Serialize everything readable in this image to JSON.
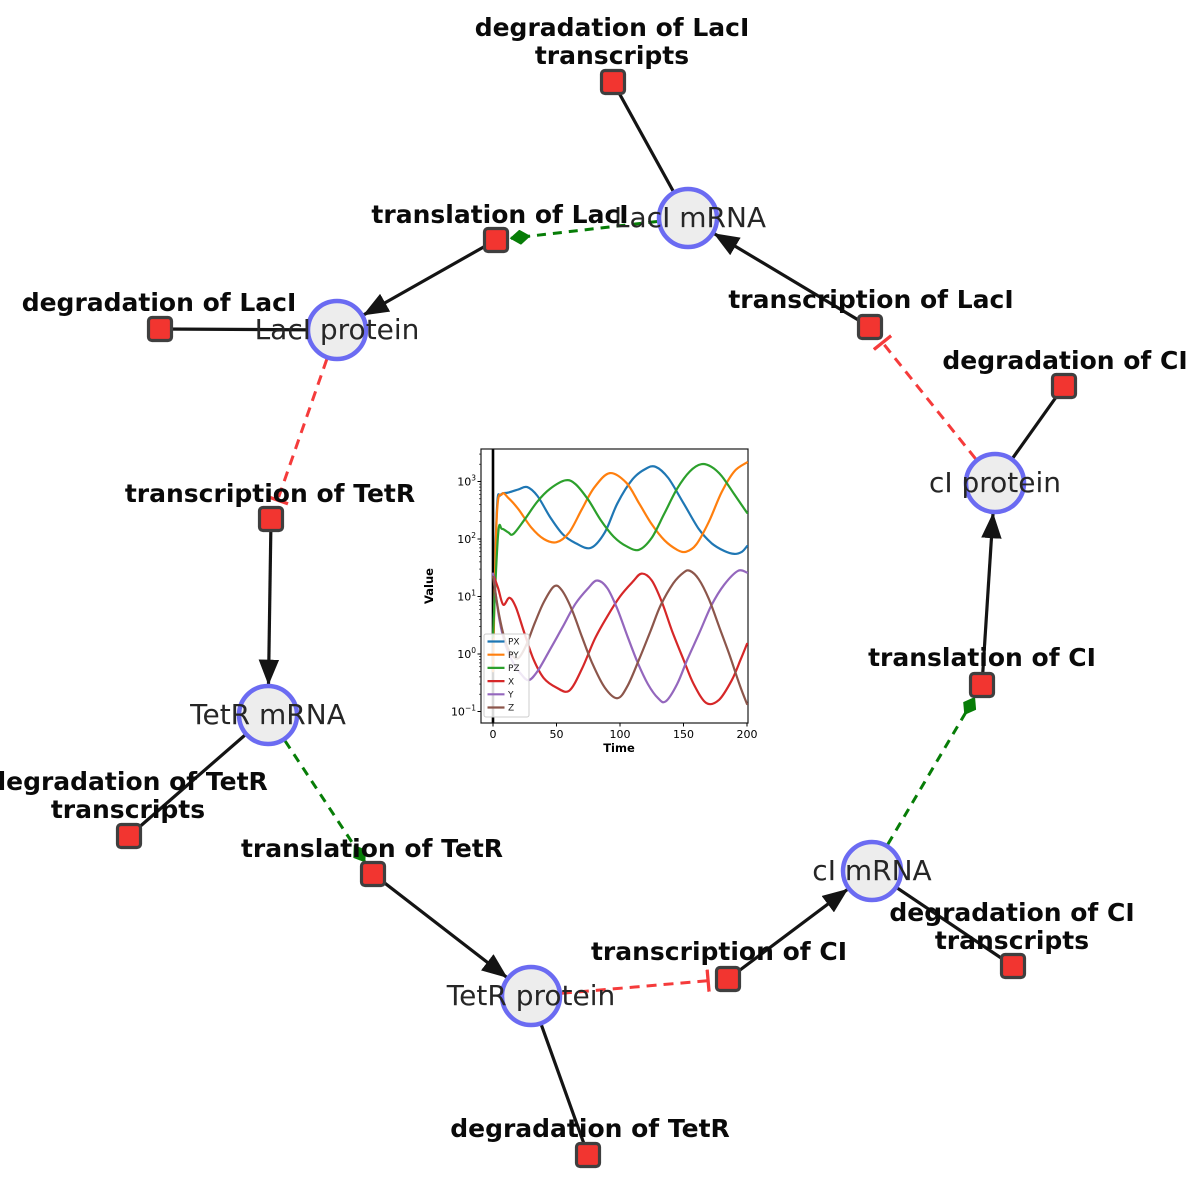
{
  "nodes": {
    "laci_mrna": {
      "label": "LacI mRNA"
    },
    "laci_protein": {
      "label": "LacI protein"
    },
    "tetr_mrna": {
      "label": "TetR mRNA"
    },
    "tetr_protein": {
      "label": "TetR protein"
    },
    "ci_mrna": {
      "label": "cI mRNA"
    },
    "ci_protein": {
      "label": "cI protein"
    }
  },
  "reactions": {
    "deg_laci_tr": {
      "lines": [
        "degradation of LacI",
        "transcripts"
      ]
    },
    "transl_laci": {
      "lines": [
        "translation of LacI"
      ]
    },
    "deg_laci": {
      "lines": [
        "degradation of LacI"
      ]
    },
    "transc_tetr": {
      "lines": [
        "transcription of TetR"
      ]
    },
    "deg_tetr_tr": {
      "lines": [
        "degradation of TetR",
        "transcripts"
      ]
    },
    "transl_tetr": {
      "lines": [
        "translation of TetR"
      ]
    },
    "deg_tetr": {
      "lines": [
        "degradation of TetR"
      ]
    },
    "transc_ci": {
      "lines": [
        "transcription of CI"
      ]
    },
    "deg_ci_tr": {
      "lines": [
        "degradation of CI",
        "transcripts"
      ]
    },
    "transl_ci": {
      "lines": [
        "translation of CI"
      ]
    },
    "deg_ci": {
      "lines": [
        "degradation of CI"
      ]
    },
    "transc_laci": {
      "lines": [
        "transcription of LacI"
      ]
    }
  },
  "colors": {
    "species_fill": "#ededed",
    "species_border": "#6b6bf2",
    "reaction_fill": "#f23530",
    "reaction_border": "#3f3f3f",
    "edge_solid": "#141414",
    "edge_activation": "#077d07",
    "edge_inhibition": "#f53b3b"
  },
  "chart_data": {
    "type": "line",
    "title": "",
    "xlabel": "Time",
    "ylabel": "Value",
    "yscale": "log",
    "xlim": [
      -10,
      201
    ],
    "ylim": [
      0.09,
      3500
    ],
    "x_ticks": [
      0,
      50,
      100,
      150,
      200
    ],
    "y_tick_exponents": [
      -1,
      0,
      1,
      2,
      3
    ],
    "vline_x": 0,
    "legend_position": "lower left",
    "grid": false,
    "series": [
      {
        "name": "PX",
        "color": "#1f77b4",
        "points": [
          [
            0,
            0.8
          ],
          [
            3,
            300
          ],
          [
            6,
            580
          ],
          [
            12,
            640
          ],
          [
            20,
            730
          ],
          [
            27,
            800
          ],
          [
            35,
            560
          ],
          [
            45,
            240
          ],
          [
            55,
            120
          ],
          [
            65,
            85
          ],
          [
            77,
            70
          ],
          [
            88,
            130
          ],
          [
            98,
            420
          ],
          [
            110,
            1100
          ],
          [
            120,
            1650
          ],
          [
            128,
            1800
          ],
          [
            138,
            1150
          ],
          [
            150,
            420
          ],
          [
            162,
            150
          ],
          [
            172,
            85
          ],
          [
            182,
            62
          ],
          [
            190,
            55
          ],
          [
            196,
            60
          ],
          [
            200,
            75
          ]
        ]
      },
      {
        "name": "PY",
        "color": "#ff7f0e",
        "points": [
          [
            0,
            0.5
          ],
          [
            3,
            250
          ],
          [
            7,
            600
          ],
          [
            12,
            520
          ],
          [
            20,
            330
          ],
          [
            30,
            160
          ],
          [
            40,
            100
          ],
          [
            50,
            88
          ],
          [
            60,
            130
          ],
          [
            70,
            330
          ],
          [
            80,
            800
          ],
          [
            92,
            1400
          ],
          [
            105,
            950
          ],
          [
            115,
            420
          ],
          [
            125,
            180
          ],
          [
            135,
            95
          ],
          [
            145,
            65
          ],
          [
            152,
            60
          ],
          [
            160,
            80
          ],
          [
            170,
            200
          ],
          [
            180,
            650
          ],
          [
            190,
            1500
          ],
          [
            200,
            2150
          ]
        ]
      },
      {
        "name": "PZ",
        "color": "#2ca02c",
        "points": [
          [
            0,
            2
          ],
          [
            4,
            120
          ],
          [
            7,
            150
          ],
          [
            12,
            130
          ],
          [
            16,
            122
          ],
          [
            25,
            220
          ],
          [
            35,
            450
          ],
          [
            45,
            750
          ],
          [
            57,
            1050
          ],
          [
            65,
            900
          ],
          [
            75,
            480
          ],
          [
            85,
            210
          ],
          [
            95,
            110
          ],
          [
            105,
            75
          ],
          [
            115,
            65
          ],
          [
            125,
            105
          ],
          [
            135,
            280
          ],
          [
            145,
            750
          ],
          [
            155,
            1500
          ],
          [
            164,
            2000
          ],
          [
            172,
            1800
          ],
          [
            180,
            1250
          ],
          [
            190,
            600
          ],
          [
            200,
            285
          ]
        ]
      },
      {
        "name": "X",
        "color": "#d62728",
        "points": [
          [
            0,
            25
          ],
          [
            4,
            14
          ],
          [
            8,
            7.2
          ],
          [
            13,
            9.5
          ],
          [
            18,
            6.5
          ],
          [
            25,
            2.2
          ],
          [
            32,
            0.8
          ],
          [
            40,
            0.38
          ],
          [
            50,
            0.26
          ],
          [
            60,
            0.23
          ],
          [
            70,
            0.55
          ],
          [
            80,
            1.8
          ],
          [
            90,
            4.5
          ],
          [
            100,
            10
          ],
          [
            110,
            18
          ],
          [
            117,
            25
          ],
          [
            125,
            19
          ],
          [
            133,
            8
          ],
          [
            141,
            2.5
          ],
          [
            150,
            0.8
          ],
          [
            158,
            0.3
          ],
          [
            168,
            0.14
          ],
          [
            178,
            0.16
          ],
          [
            188,
            0.35
          ],
          [
            195,
            0.8
          ],
          [
            200,
            1.5
          ]
        ]
      },
      {
        "name": "Y",
        "color": "#9467bd",
        "points": [
          [
            0,
            25
          ],
          [
            5,
            4
          ],
          [
            10,
            1.4
          ],
          [
            16,
            0.7
          ],
          [
            22,
            0.45
          ],
          [
            28,
            0.35
          ],
          [
            35,
            0.5
          ],
          [
            45,
            1.2
          ],
          [
            55,
            3
          ],
          [
            65,
            7.5
          ],
          [
            75,
            14
          ],
          [
            82,
            19
          ],
          [
            90,
            14
          ],
          [
            98,
            6
          ],
          [
            106,
            2
          ],
          [
            114,
            0.7
          ],
          [
            122,
            0.3
          ],
          [
            130,
            0.17
          ],
          [
            136,
            0.15
          ],
          [
            145,
            0.3
          ],
          [
            153,
            0.8
          ],
          [
            162,
            2.2
          ],
          [
            172,
            7
          ],
          [
            182,
            16
          ],
          [
            193,
            28
          ],
          [
            200,
            26
          ]
        ]
      },
      {
        "name": "Z",
        "color": "#8c564b",
        "points": [
          [
            0,
            22
          ],
          [
            5,
            4.5
          ],
          [
            10,
            1.6
          ],
          [
            15,
            0.95
          ],
          [
            20,
            0.85
          ],
          [
            26,
            1.4
          ],
          [
            33,
            3.5
          ],
          [
            40,
            8
          ],
          [
            48,
            15
          ],
          [
            54,
            13
          ],
          [
            62,
            6
          ],
          [
            70,
            2
          ],
          [
            78,
            0.7
          ],
          [
            88,
            0.26
          ],
          [
            98,
            0.17
          ],
          [
            106,
            0.28
          ],
          [
            115,
            0.8
          ],
          [
            124,
            2.5
          ],
          [
            132,
            7
          ],
          [
            142,
            17
          ],
          [
            150,
            26
          ],
          [
            155,
            28
          ],
          [
            162,
            20
          ],
          [
            170,
            9
          ],
          [
            178,
            3
          ],
          [
            186,
            1
          ],
          [
            194,
            0.3
          ],
          [
            200,
            0.135
          ]
        ]
      }
    ]
  }
}
